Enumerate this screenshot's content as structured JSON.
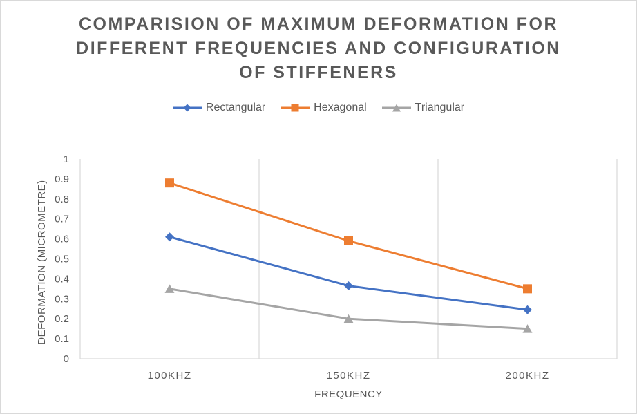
{
  "chart_data": {
    "type": "line",
    "title_lines": [
      "COMPARISION OF MAXIMUM DEFORMATION FOR",
      "DIFFERENT FREQUENCIES AND CONFIGURATION",
      "OF STIFFENERS"
    ],
    "categories": [
      "100KHZ",
      "150KHZ",
      "200KHZ"
    ],
    "xlabel": "FREQUENCY",
    "ylabel": "DEFORMATION (MICROMETRE)",
    "ylim": [
      0,
      1
    ],
    "yticks": [
      "0",
      "0.1",
      "0.2",
      "0.3",
      "0.4",
      "0.5",
      "0.6",
      "0.7",
      "0.8",
      "0.9",
      "1"
    ],
    "legend_position": "top",
    "grid": "vertical",
    "series": [
      {
        "name": "Rectangular",
        "color": "#4472c4",
        "marker": "diamond",
        "values": [
          0.61,
          0.365,
          0.245
        ]
      },
      {
        "name": "Hexagonal",
        "color": "#ed7d31",
        "marker": "square",
        "values": [
          0.88,
          0.59,
          0.35
        ]
      },
      {
        "name": "Triangular",
        "color": "#a5a5a5",
        "marker": "triangle",
        "values": [
          0.35,
          0.2,
          0.15
        ]
      }
    ]
  }
}
